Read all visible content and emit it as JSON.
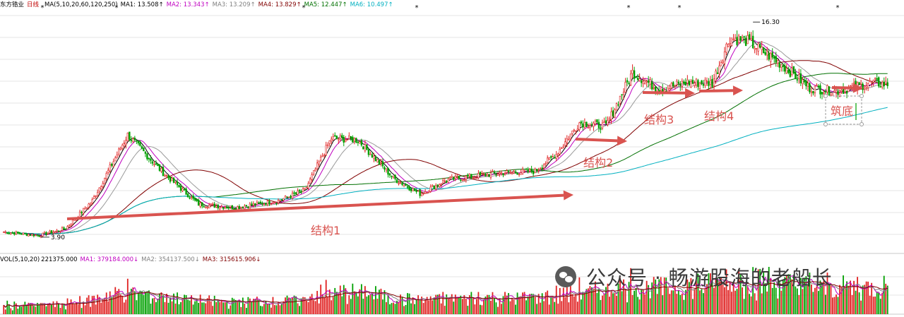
{
  "chart_data": [
    {
      "type": "candlestick",
      "title": "东方锆业",
      "period": "日线",
      "indicator": "MA(5,10,20,60,120,250)",
      "ma_labels": [
        {
          "name": "MA1",
          "value": "13.508",
          "color": "#000000"
        },
        {
          "name": "MA2",
          "value": "13.343",
          "color": "#c000c0"
        },
        {
          "name": "MA3",
          "value": "13.209",
          "color": "#808080"
        },
        {
          "name": "MA4",
          "value": "13.829",
          "color": "#800000"
        },
        {
          "name": "MA5",
          "value": "12.447",
          "color": "#007000"
        },
        {
          "name": "MA6",
          "value": "10.497",
          "color": "#00b0c0"
        }
      ],
      "high_label": "16.30",
      "low_label": "3.90",
      "ylim": [
        3.0,
        17.0
      ],
      "annotations": [
        {
          "text": "结构1",
          "color": "#d9534f"
        },
        {
          "text": "结构2",
          "color": "#d9534f"
        },
        {
          "text": "结构3",
          "color": "#d9534f"
        },
        {
          "text": "结构4",
          "color": "#d9534f"
        },
        {
          "text": "筑底",
          "color": "#d9534f"
        }
      ],
      "price_path_keypoints": [
        [
          0,
          4.2
        ],
        [
          20,
          4.0
        ],
        [
          35,
          4.4
        ],
        [
          50,
          6.0
        ],
        [
          70,
          9.8
        ],
        [
          90,
          7.6
        ],
        [
          110,
          5.8
        ],
        [
          130,
          5.6
        ],
        [
          155,
          6.0
        ],
        [
          170,
          6.6
        ],
        [
          185,
          9.6
        ],
        [
          200,
          9.5
        ],
        [
          220,
          7.3
        ],
        [
          235,
          6.4
        ],
        [
          250,
          7.2
        ],
        [
          280,
          7.6
        ],
        [
          300,
          7.7
        ],
        [
          312,
          8.7
        ],
        [
          325,
          10.5
        ],
        [
          340,
          10.3
        ],
        [
          355,
          13.4
        ],
        [
          370,
          12.4
        ],
        [
          385,
          12.8
        ],
        [
          400,
          12.8
        ],
        [
          410,
          15.4
        ],
        [
          420,
          15.2
        ],
        [
          440,
          13.8
        ],
        [
          455,
          12.5
        ],
        [
          470,
          12.3
        ],
        [
          490,
          12.8
        ],
        [
          500,
          12.7
        ]
      ]
    },
    {
      "type": "bar",
      "indicator": "VOL(5,10,20)",
      "vol_value": "221375.000",
      "ma_labels": [
        {
          "name": "MA1",
          "value": "379184.000",
          "color": "#c000c0"
        },
        {
          "name": "MA2",
          "value": "354137.500",
          "color": "#808080"
        },
        {
          "name": "MA3",
          "value": "315615.906",
          "color": "#800000"
        }
      ]
    }
  ],
  "watermark": {
    "text": "公众号 · 畅游股海的老船长"
  },
  "colors": {
    "up": "#e02020",
    "down": "#00a000",
    "annot": "#d9534f",
    "grid": "#e6e6e6"
  }
}
